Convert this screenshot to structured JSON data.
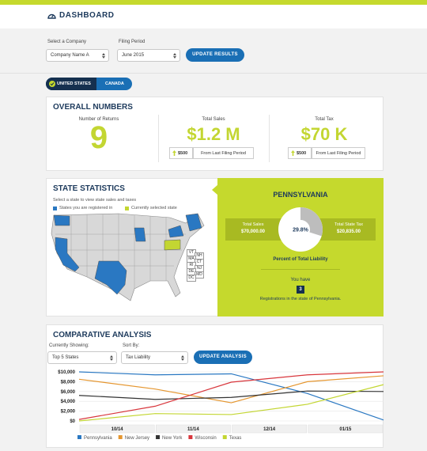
{
  "header": {
    "title": "DASHBOARD"
  },
  "filters": {
    "company_label": "Select a Company",
    "company_value": "Company Name A",
    "period_label": "Filing Period",
    "period_value": "June 2015",
    "button": "UPDATE RESULTS"
  },
  "tabs": [
    "UNITED STATES",
    "CANADA"
  ],
  "overall": {
    "title": "OVERALL NUMBERS",
    "returns_label": "Number of Returns",
    "returns": "9",
    "sales_label": "Total Sales",
    "sales": "$1.2 M",
    "sales_change": "$500",
    "tax_label": "Total Tax",
    "tax": "$70 K",
    "tax_change": "$500",
    "change_note": "From Last Filing Period"
  },
  "state_stats": {
    "title": "STATE STATISTICS",
    "subtitle": "Select a state to view state sales and taxes",
    "legend": [
      "States you are registered in",
      "Currently selected state"
    ],
    "small_states": [
      "VT",
      "NH",
      "MA",
      "CT",
      "RI",
      "NJ",
      "DE",
      "MD",
      "DC"
    ],
    "selected": {
      "name": "PENNSYLVANIA",
      "sales_label": "Total Sales",
      "sales": "$70,000.00",
      "tax_label": "Total State Tax",
      "tax": "$20,835.00",
      "liability_percent": 29.8,
      "liability_percent_label": "29.8%",
      "liability_caption": "Percent of Total Liability",
      "you_have": "You have",
      "registrations": "3",
      "registrations_note": "Registrations in the state of Pennsylvania."
    }
  },
  "comparative": {
    "title": "COMPARATIVE ANALYSIS",
    "showing_label": "Currently Showing:",
    "showing_value": "Top 5 States",
    "sort_label": "Sort By:",
    "sort_value": "Tax Liability",
    "button": "UPDATE ANALYSIS",
    "chart": {
      "type": "line",
      "categories": [
        "10/14",
        "11/14",
        "12/14",
        "01/15",
        null
      ],
      "series": [
        {
          "name": "Pennsylvania",
          "color": "#2a78c2",
          "values": [
            10000,
            9400,
            9600,
            5600,
            200
          ]
        },
        {
          "name": "New Jersey",
          "color": "#e5962f",
          "values": [
            8500,
            6500,
            3700,
            8000,
            9200
          ]
        },
        {
          "name": "New York",
          "color": "#333333",
          "values": [
            5200,
            4400,
            4800,
            6100,
            6000
          ]
        },
        {
          "name": "Wisconsin",
          "color": "#d8363c",
          "values": [
            300,
            3000,
            7900,
            9400,
            10000
          ]
        },
        {
          "name": "Texas",
          "color": "#c3d632",
          "values": [
            0,
            1500,
            1300,
            3400,
            7400
          ]
        }
      ],
      "ylim": [
        0,
        10000
      ],
      "yticks": [
        {
          "value": 0,
          "label": "$0"
        },
        {
          "value": 2000,
          "label": "$2,000"
        },
        {
          "value": 4000,
          "label": "$4,000"
        },
        {
          "value": 6000,
          "label": "$6,000"
        },
        {
          "value": 8000,
          "label": "$8,000"
        },
        {
          "value": 10000,
          "label": "$10,000"
        }
      ],
      "grid": true
    }
  }
}
